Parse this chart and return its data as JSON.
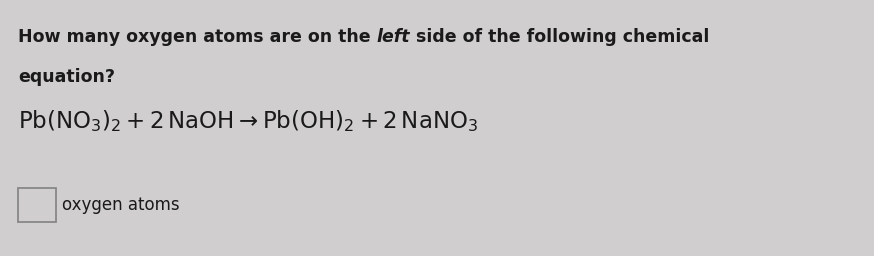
{
  "background_color": "#d0cece",
  "question_part1": "How many oxygen atoms are on the ",
  "question_bold_italic": "left",
  "question_part2": " side of the following chemical",
  "question_line2": "equation?",
  "answer_label": "oxygen atoms",
  "text_color": "#1a1a1a",
  "question_fontsize": 12.5,
  "equation_fontsize": 16.5,
  "answer_fontsize": 12,
  "box_color": "#888888"
}
